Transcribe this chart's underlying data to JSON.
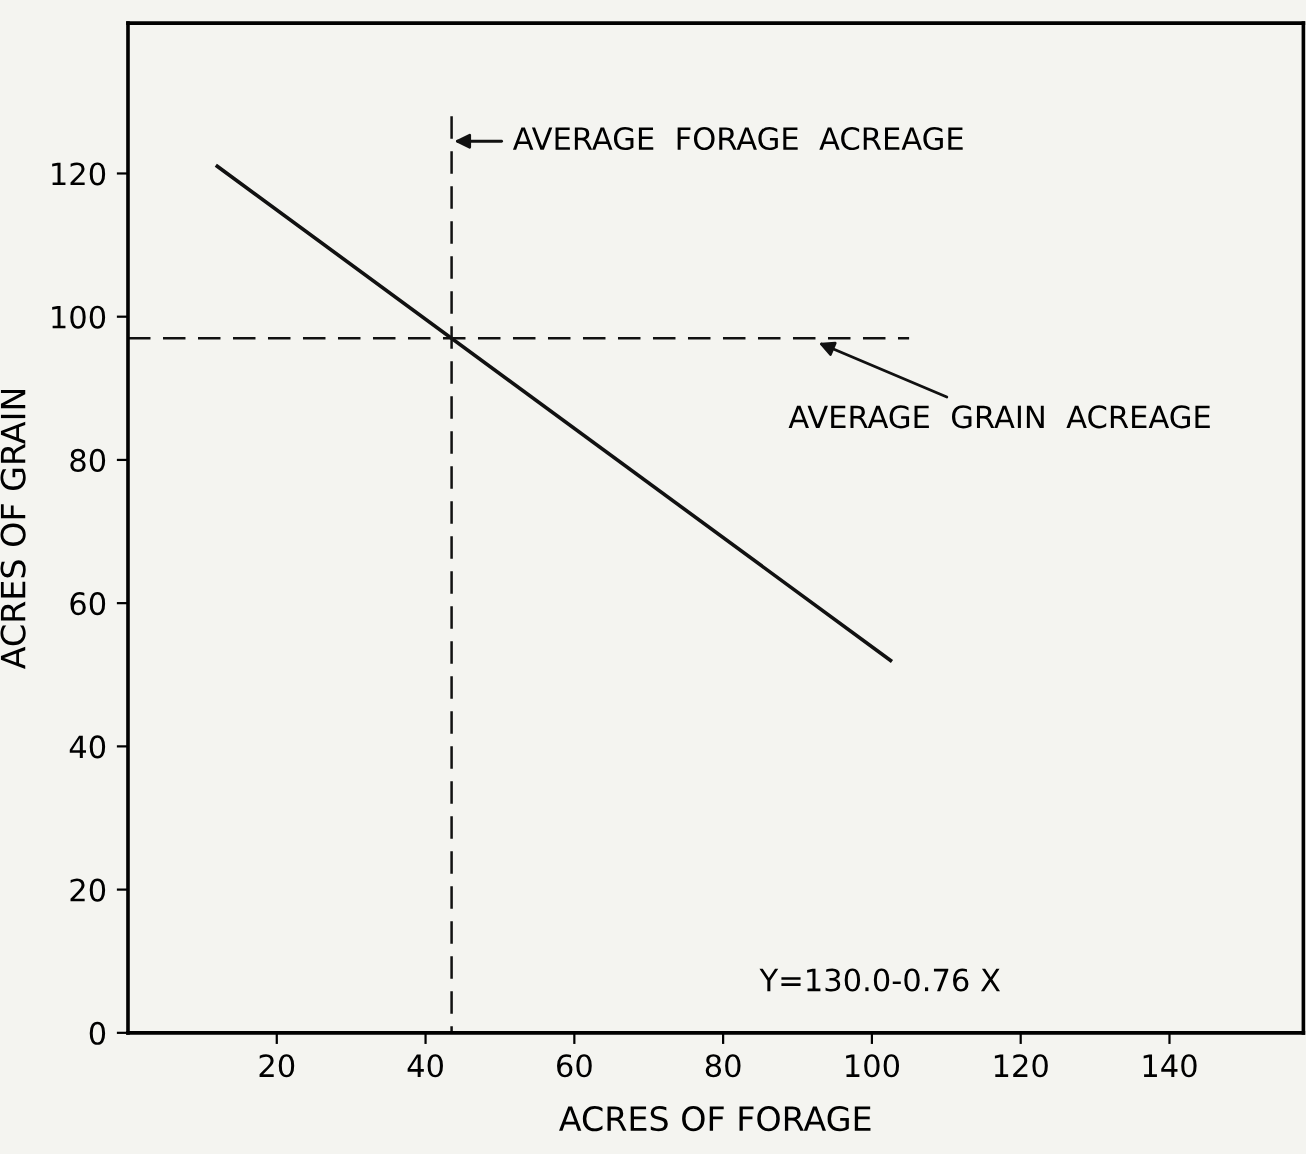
{
  "chart_data": {
    "type": "line",
    "xlabel": "ACRES OF FORAGE",
    "ylabel": "ACRES OF GRAIN",
    "xlim": [
      0,
      158
    ],
    "ylim": [
      0,
      141
    ],
    "xticks": [
      20,
      40,
      60,
      80,
      100,
      120,
      140
    ],
    "yticks": [
      0,
      20,
      40,
      60,
      80,
      100,
      120
    ],
    "series": [
      {
        "color": "#111111",
        "x": [
          12,
          102.5
        ],
        "values": [
          121,
          52
        ],
        "line_style": "solid"
      },
      {
        "color": "#111111",
        "x": [
          43.5,
          43.5
        ],
        "values": [
          128,
          0
        ],
        "line_style": "dashed"
      },
      {
        "color": "#111111",
        "x": [
          0,
          105
        ],
        "values": [
          97,
          97
        ],
        "line_style": "dashed"
      }
    ],
    "annotations": [
      {
        "text": "AVERAGE  FORAGE  ACREAGE",
        "x": 43.5,
        "y": 124.5
      },
      {
        "text": "AVERAGE  GRAIN  ACREAGE",
        "x": 92.5,
        "y": 96.5
      },
      "Y=130.0-0.76 X"
    ],
    "grid": false,
    "marker": "none"
  }
}
